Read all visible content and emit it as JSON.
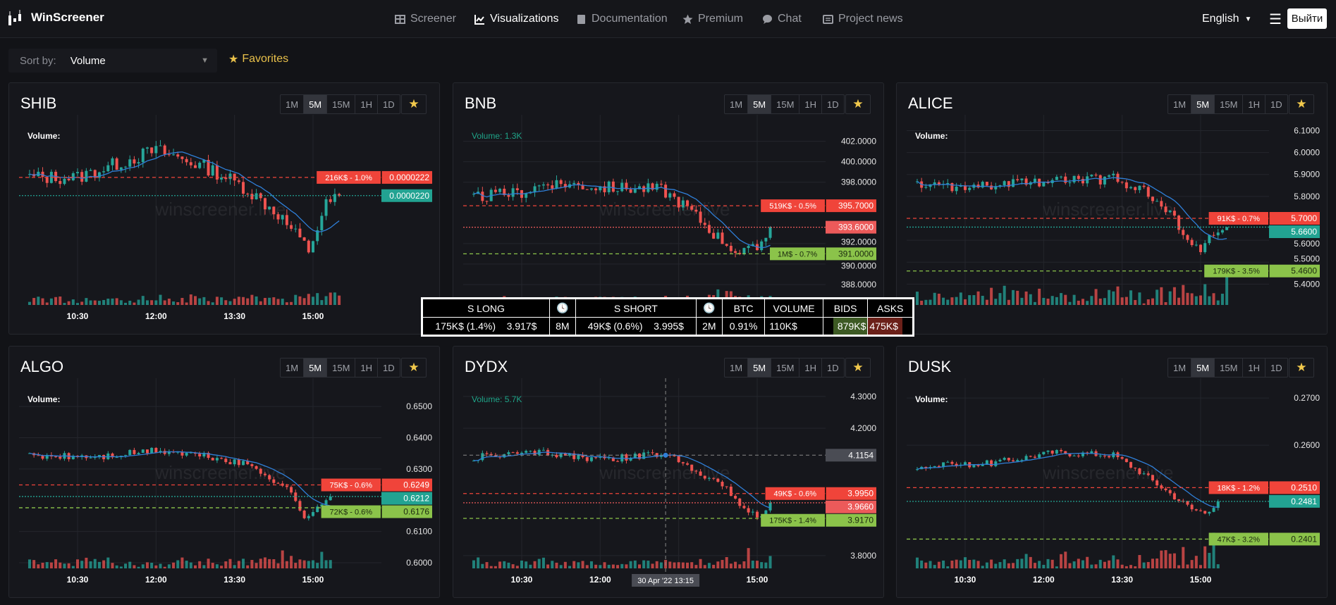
{
  "app": {
    "name": "WinScreener"
  },
  "nav": [
    {
      "label": "Screener",
      "icon": "table-icon"
    },
    {
      "label": "Visualizations",
      "icon": "chart-icon",
      "active": true
    },
    {
      "label": "Documentation",
      "icon": "book-icon"
    },
    {
      "label": "Premium",
      "icon": "star-icon"
    },
    {
      "label": "Chat",
      "icon": "chat-icon"
    },
    {
      "label": "Project news",
      "icon": "news-icon"
    }
  ],
  "header_right": {
    "language": "English",
    "logout": "Выйти"
  },
  "sort": {
    "label": "Sort by:",
    "value": "Volume"
  },
  "favorites": "Favorites",
  "timeframes": [
    "1M",
    "5M",
    "15M",
    "1H",
    "1D"
  ],
  "active_timeframe": "5M",
  "watermark": "winscreener.live",
  "time_labels": [
    "10:30",
    "12:00",
    "13:30",
    "15:00"
  ],
  "colors": {
    "up": "#26a69a",
    "down": "#ef5350",
    "ask": "#f0443a",
    "bid": "#8bc34a",
    "ma": "#2f7fd8",
    "current_up": "#22a392",
    "current_down": "#ec5a5a"
  },
  "tooltip": {
    "headers": [
      "S LONG",
      "clock-icon",
      "S SHORT",
      "clock-icon",
      "BTC",
      "VOLUME",
      "BIDS",
      "ASKS"
    ],
    "long_amount": "175K$ (1.4%)",
    "long_price": "3.917$",
    "long_time": "8M",
    "short_amount": "49K$ (0.6%)",
    "short_price": "3.995$",
    "short_time": "2M",
    "btc": "0.91%",
    "volume": "110K$",
    "bids": "879K$",
    "asks": "475K$"
  },
  "chart_data": [
    {
      "type": "candlestick",
      "symbol": "SHIB",
      "volume_label": "Volume:",
      "ylim": [
        2.08e-05,
        2.281e-05
      ],
      "ticks": [],
      "decimals": 7,
      "path": [
        [
          575,
          2.22e-05
        ],
        [
          630,
          2.22e-05
        ],
        [
          690,
          2.24e-05
        ],
        [
          720,
          2.25e-05
        ],
        [
          780,
          2.23e-05
        ],
        [
          820,
          2.21e-05
        ],
        [
          860,
          2.18e-05
        ],
        [
          895,
          2.14e-05
        ],
        [
          915,
          2.19e-05
        ],
        [
          930,
          2.2e-05
        ]
      ],
      "noise": 8e-08,
      "ask": {
        "info": "216K$ - 1.0%",
        "price": "0.0000222",
        "value": 2.22e-05
      },
      "current": {
        "price": "0.0000220",
        "value": 2.2e-05,
        "dir": "up"
      },
      "bid": null,
      "volume_level": 0.15
    },
    {
      "type": "candlestick",
      "symbol": "BNB",
      "volume_label": "Volume: 1.3K",
      "ylim": [
        386.0,
        403.9
      ],
      "ticks": [
        402,
        400,
        398,
        392,
        390,
        388
      ],
      "decimals": 4,
      "path": [
        [
          575,
          396.5
        ],
        [
          630,
          397
        ],
        [
          660,
          398
        ],
        [
          720,
          397.5
        ],
        [
          790,
          397.3
        ],
        [
          820,
          395.5
        ],
        [
          850,
          393
        ],
        [
          880,
          391
        ],
        [
          900,
          391.5
        ],
        [
          915,
          393.6
        ]
      ],
      "noise": 0.6,
      "ask": {
        "info": "519K$ - 0.5%",
        "price": "395.7000",
        "value": 395.7
      },
      "current": {
        "price": "393.6000",
        "value": 393.6,
        "dir": "down"
      },
      "bid": {
        "info": "1M$ - 0.7%",
        "price": "391.0000",
        "value": 391.0
      },
      "volume_level": 0.15
    },
    {
      "type": "candlestick",
      "symbol": "ALICE",
      "volume_label": "Volume:",
      "ylim": [
        5.305,
        6.14
      ],
      "ticks": [
        6.1,
        6.0,
        5.9,
        5.8,
        5.6,
        5.5,
        5.4
      ],
      "decimals": 4,
      "path": [
        [
          575,
          5.85
        ],
        [
          640,
          5.84
        ],
        [
          720,
          5.87
        ],
        [
          800,
          5.88
        ],
        [
          830,
          5.84
        ],
        [
          860,
          5.74
        ],
        [
          890,
          5.6
        ],
        [
          900,
          5.55
        ],
        [
          915,
          5.63
        ],
        [
          930,
          5.66
        ]
      ],
      "noise": 0.025,
      "ask": {
        "info": "91K$ - 0.7%",
        "price": "5.7000",
        "value": 5.7
      },
      "current": {
        "price": "5.6600",
        "value": 5.66,
        "dir": "up"
      },
      "bid": {
        "info": "179K$ - 3.5%",
        "price": "5.4600",
        "value": 5.46
      },
      "volume_level": 0.75
    },
    {
      "type": "candlestick",
      "symbol": "ALGO",
      "volume_label": "Volume:",
      "ylim": [
        0.5982,
        0.6568
      ],
      "ticks": [
        0.65,
        0.64,
        0.63,
        0.61,
        0.6
      ],
      "decimals": 4,
      "path": [
        [
          575,
          0.634
        ],
        [
          660,
          0.634
        ],
        [
          720,
          0.636
        ],
        [
          780,
          0.634
        ],
        [
          830,
          0.631
        ],
        [
          870,
          0.624
        ],
        [
          890,
          0.615
        ],
        [
          905,
          0.617
        ],
        [
          920,
          0.6212
        ]
      ],
      "noise": 0.0012,
      "ask": {
        "info": "75K$ - 0.6%",
        "price": "0.6249",
        "value": 0.6249
      },
      "current": {
        "price": "0.6212",
        "value": 0.6212,
        "dir": "up"
      },
      "bid": {
        "info": "72K$ - 0.6%",
        "price": "0.6176",
        "value": 0.6176
      },
      "volume_level": 0.2
    },
    {
      "type": "candlestick",
      "symbol": "DYDX",
      "volume_label": "Volume: 5.7K",
      "ylim": [
        3.76,
        4.335
      ],
      "ticks": [
        4.3,
        4.2,
        3.8
      ],
      "decimals": 4,
      "path": [
        [
          575,
          4.11
        ],
        [
          630,
          4.12
        ],
        [
          660,
          4.125
        ],
        [
          720,
          4.1
        ],
        [
          795,
          4.12
        ],
        [
          830,
          4.07
        ],
        [
          860,
          4.02
        ],
        [
          885,
          3.95
        ],
        [
          900,
          3.92
        ],
        [
          915,
          3.96
        ]
      ],
      "noise": 0.012,
      "ask": {
        "info": "49K$ - 0.6%",
        "price": "3.9950",
        "value": 3.995
      },
      "current": {
        "price": "3.9660",
        "value": 3.966,
        "dir": "down"
      },
      "bid": {
        "info": "175K$ - 1.4%",
        "price": "3.9170",
        "value": 3.917
      },
      "crosshair": {
        "time": 795,
        "price_label": "4.1154",
        "value": 4.1154,
        "time_label": "30 Apr '22   13:15"
      },
      "volume_level": 0.25
    },
    {
      "type": "candlestick",
      "symbol": "DUSK",
      "volume_label": "Volume:",
      "ylim": [
        0.2339,
        0.2727
      ],
      "ticks": [
        0.27,
        0.26
      ],
      "decimals": 4,
      "path": [
        [
          575,
          0.2555
        ],
        [
          660,
          0.2562
        ],
        [
          730,
          0.2585
        ],
        [
          800,
          0.258
        ],
        [
          830,
          0.2545
        ],
        [
          860,
          0.2505
        ],
        [
          890,
          0.2465
        ],
        [
          905,
          0.2458
        ],
        [
          920,
          0.2481
        ]
      ],
      "noise": 0.0007,
      "ask": {
        "info": "18K$ - 1.2%",
        "price": "0.2510",
        "value": 0.251
      },
      "current": {
        "price": "0.2481",
        "value": 0.2481,
        "dir": "up"
      },
      "bid": {
        "info": "47K$ - 3.2%",
        "price": "0.2401",
        "value": 0.2401
      },
      "volume_level": 0.6
    }
  ]
}
